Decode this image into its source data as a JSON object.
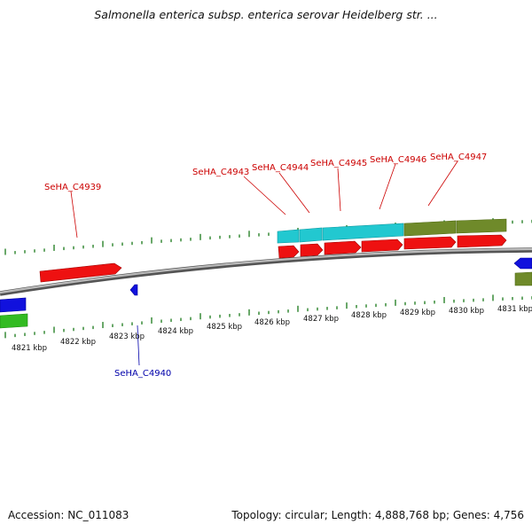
{
  "title": "Salmonella enterica subsp. enterica serovar Heidelberg str. ...",
  "footer": {
    "accession": "Accession: NC_011083",
    "summary": "Topology: circular; Length: 4,888,768 bp; Genes: 4,756"
  },
  "colors": {
    "forward_cds": "#ee1111",
    "reverse_cds": "#1111dd",
    "cyan_feature": "#22c8d0",
    "olive_feature": "#6f8a2a",
    "green_feature": "#33bb22",
    "backbone": "#888888",
    "tick": "#1a7a1a",
    "forward_label": "#cc0000",
    "reverse_label": "#0000aa"
  },
  "scale_labels": [
    "4821 kbp",
    "4822 kbp",
    "4823 kbp",
    "4824 kbp",
    "4825 kbp",
    "4826 kbp",
    "4827 kbp",
    "4828 kbp",
    "4829 kbp",
    "4830 kbp",
    "4831 kbp"
  ],
  "gene_labels": [
    {
      "text": "SeHA_C4939",
      "strand": "forward"
    },
    {
      "text": "SeHA_C4940",
      "strand": "reverse"
    },
    {
      "text": "SeHA_C4943",
      "strand": "forward"
    },
    {
      "text": "SeHA_C4944",
      "strand": "forward"
    },
    {
      "text": "SeHA_C4945",
      "strand": "forward"
    },
    {
      "text": "SeHA_C4946",
      "strand": "forward"
    },
    {
      "text": "SeHA_C4947",
      "strand": "forward"
    }
  ]
}
